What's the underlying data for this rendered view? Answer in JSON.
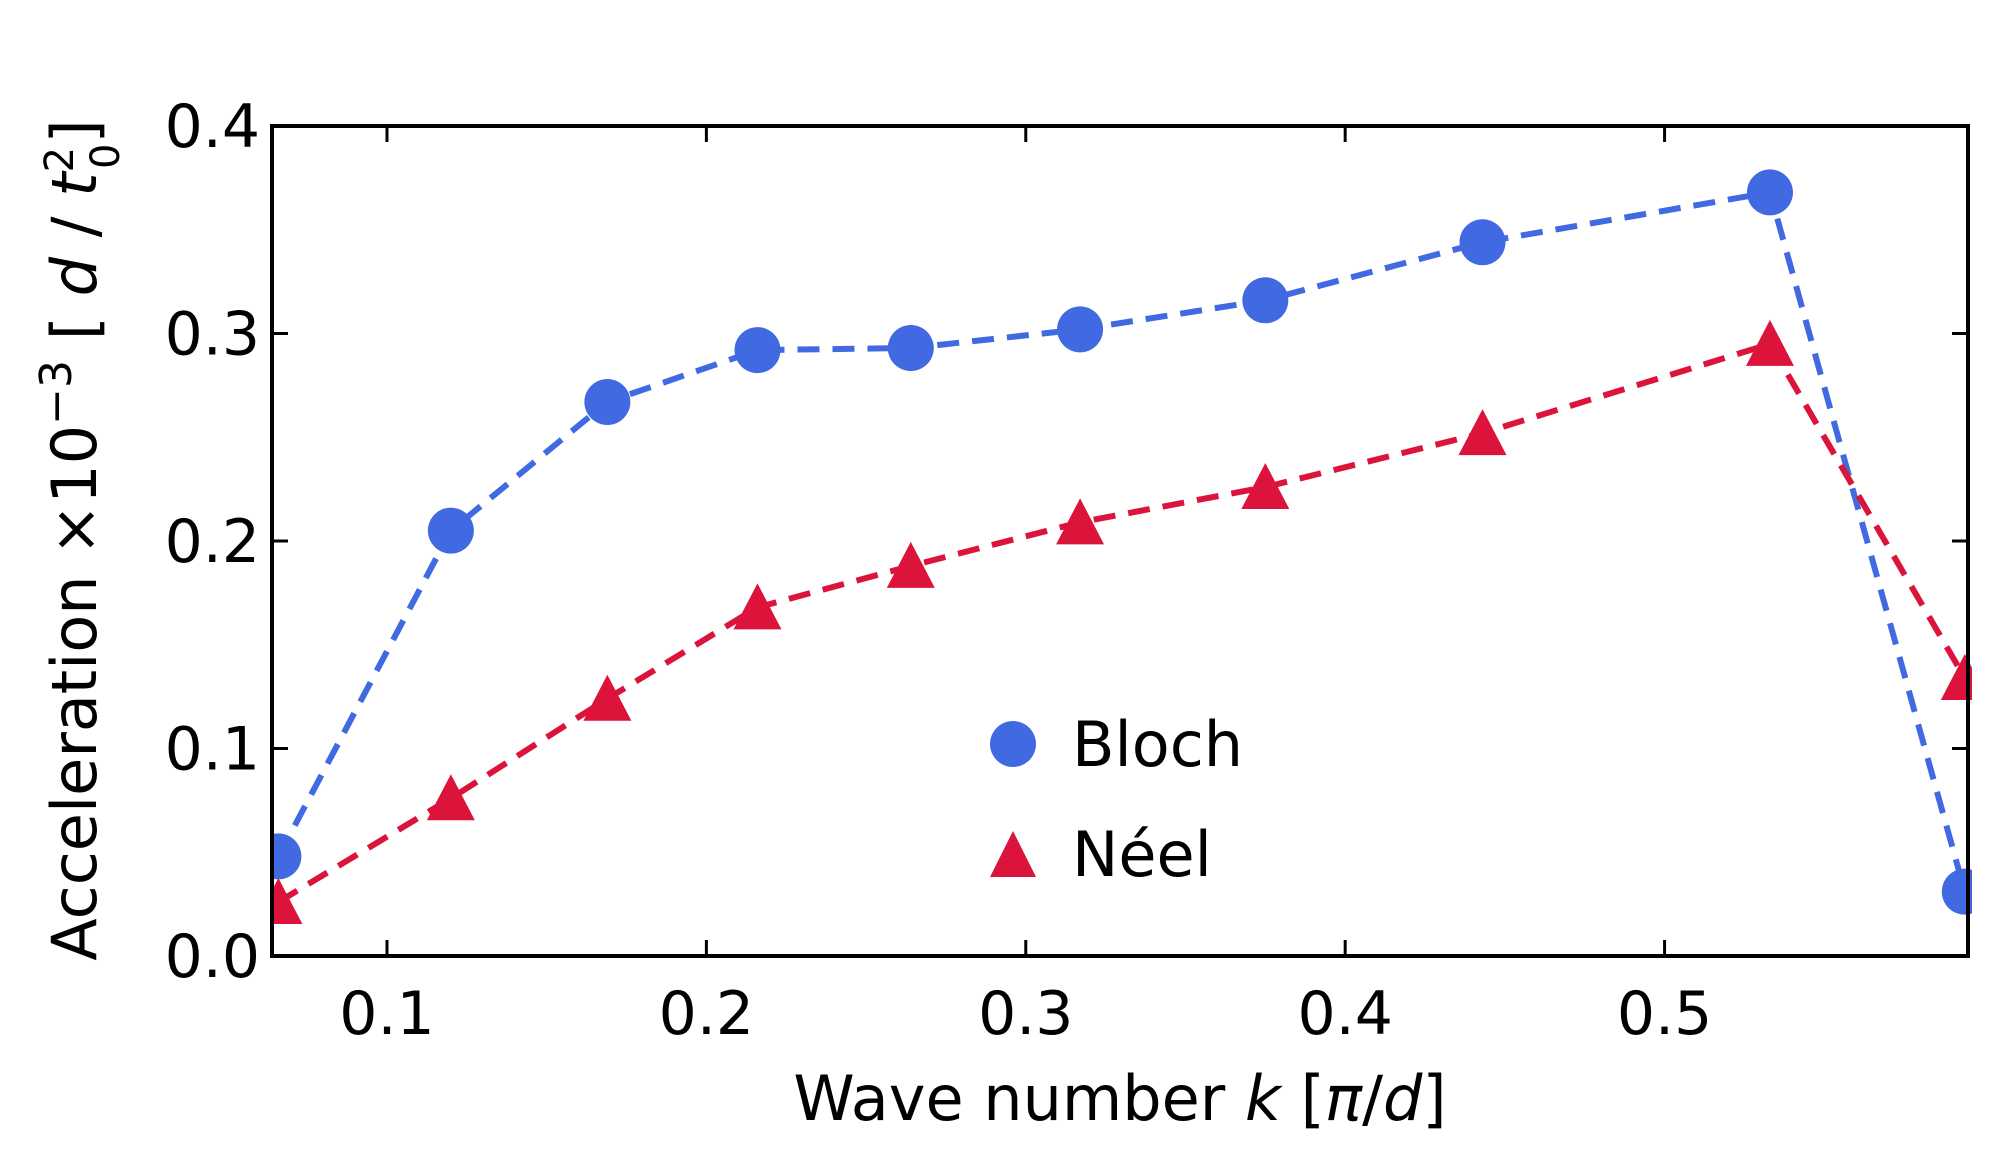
{
  "chart_data": {
    "type": "line",
    "title": "",
    "xlabel_parts": {
      "prefix": "Wave number ",
      "variable": "k",
      "unit_open": " [",
      "unit_var1": "π",
      "unit_sep": "/",
      "unit_var2": "d",
      "unit_close": "]"
    },
    "ylabel_parts": {
      "prefix": "Acceleration ×10",
      "exponent": "−3",
      "unit_open": " [ ",
      "unit_var1": "d",
      "unit_sep": " / ",
      "unit_var2": "t",
      "unit_var2_sub": "0",
      "unit_var2_sup": "2",
      "unit_close": "]"
    },
    "xlim": [
      0.064,
      0.595
    ],
    "ylim": [
      0.0,
      0.4
    ],
    "xticks": [
      0.1,
      0.2,
      0.3,
      0.4,
      0.5
    ],
    "xtick_labels": [
      "0.1",
      "0.2",
      "0.3",
      "0.4",
      "0.5"
    ],
    "yticks": [
      0.0,
      0.1,
      0.2,
      0.3,
      0.4
    ],
    "ytick_labels": [
      "0.0",
      "0.1",
      "0.2",
      "0.3",
      "0.4"
    ],
    "grid": false,
    "legend_position": "lower-center",
    "series": [
      {
        "name": "Bloch",
        "marker": "circle",
        "line_style": "dashed",
        "color": "#4169E1",
        "x": [
          0.066,
          0.12,
          0.169,
          0.216,
          0.264,
          0.317,
          0.375,
          0.443,
          0.533,
          0.594
        ],
        "y": [
          0.048,
          0.205,
          0.267,
          0.292,
          0.293,
          0.302,
          0.316,
          0.344,
          0.368,
          0.031
        ]
      },
      {
        "name": "Néel",
        "marker": "triangle",
        "line_style": "dashed",
        "color": "#DC143C",
        "x": [
          0.066,
          0.12,
          0.169,
          0.216,
          0.264,
          0.317,
          0.375,
          0.443,
          0.533,
          0.594
        ],
        "y": [
          0.026,
          0.076,
          0.124,
          0.168,
          0.188,
          0.209,
          0.226,
          0.252,
          0.295,
          0.134
        ]
      }
    ]
  }
}
